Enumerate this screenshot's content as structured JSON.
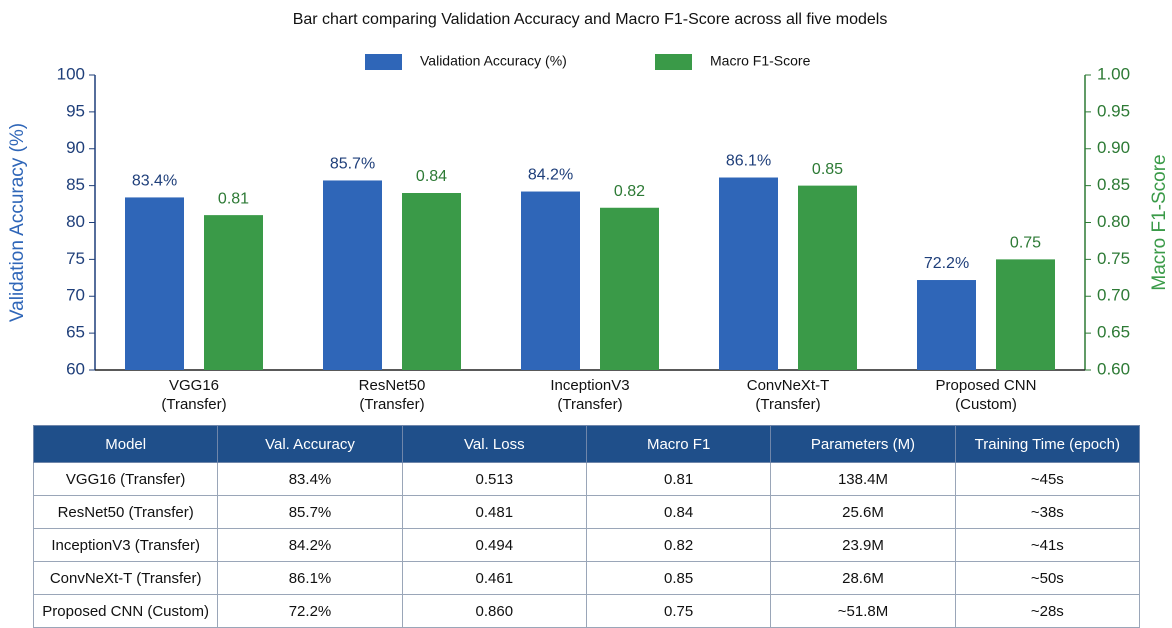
{
  "chart_data": {
    "type": "bar",
    "title": "Bar chart comparing Validation Accuracy and Macro F1-Score across all five models",
    "categories": [
      "VGG16\n(Transfer)",
      "ResNet50\n(Transfer)",
      "InceptionV3\n(Transfer)",
      "ConvNeXt-T\n(Transfer)",
      "Proposed CNN\n(Custom)"
    ],
    "series": [
      {
        "name": "Validation Accuracy (%)",
        "color": "#2f66b8",
        "axis": "y",
        "values": [
          83.4,
          85.7,
          84.2,
          86.1,
          72.2
        ],
        "value_labels": [
          "83.4%",
          "85.7%",
          "84.2%",
          "86.1%",
          "72.2%"
        ]
      },
      {
        "name": "Macro F1-Score",
        "color": "#3a9a48",
        "axis": "y2",
        "values": [
          0.81,
          0.84,
          0.82,
          0.85,
          0.75
        ]
      }
    ],
    "ylabel": "Validation Accuracy (%)",
    "y2label": "Macro F1-Score",
    "ylim": [
      60,
      100
    ],
    "yticks": [
      60,
      65,
      70,
      75,
      80,
      85,
      90,
      95,
      100
    ],
    "y2lim": [
      0.6,
      1.0
    ],
    "y2ticks": [
      {
        "value": 0.6,
        "label": "0.60"
      },
      {
        "value": 0.65,
        "label": "0.65"
      },
      {
        "value": 0.7,
        "label": "0.70"
      },
      {
        "value": 0.75,
        "label": "0.75"
      },
      {
        "value": 0.8,
        "label": "0.80"
      },
      {
        "value": 0.85,
        "label": "0.85"
      },
      {
        "value": 0.9,
        "label": "0.90"
      },
      {
        "value": 0.95,
        "label": "0.95"
      },
      {
        "value": 1.0,
        "label": "1.00"
      }
    ]
  },
  "table": {
    "columns": [
      "Model",
      "Val. Accuracy",
      "Val. Loss",
      "Macro F1",
      "Parameters (M)",
      "Training Time (epoch)"
    ],
    "rows": [
      [
        "VGG16 (Transfer)",
        "83.4%",
        "0.513",
        "0.81",
        "138.4M",
        "~45s"
      ],
      [
        "ResNet50 (Transfer)",
        "85.7%",
        "0.481",
        "0.84",
        "25.6M",
        "~38s"
      ],
      [
        "InceptionV3 (Transfer)",
        "84.2%",
        "0.494",
        "0.82",
        "23.9M",
        "~41s"
      ],
      [
        "ConvNeXt-T (Transfer)",
        "86.1%",
        "0.461",
        "0.85",
        "28.6M",
        "~50s"
      ],
      [
        "Proposed CNN (Custom)",
        "72.2%",
        "0.860",
        "0.75",
        "~51.8M",
        "~28s"
      ]
    ]
  }
}
